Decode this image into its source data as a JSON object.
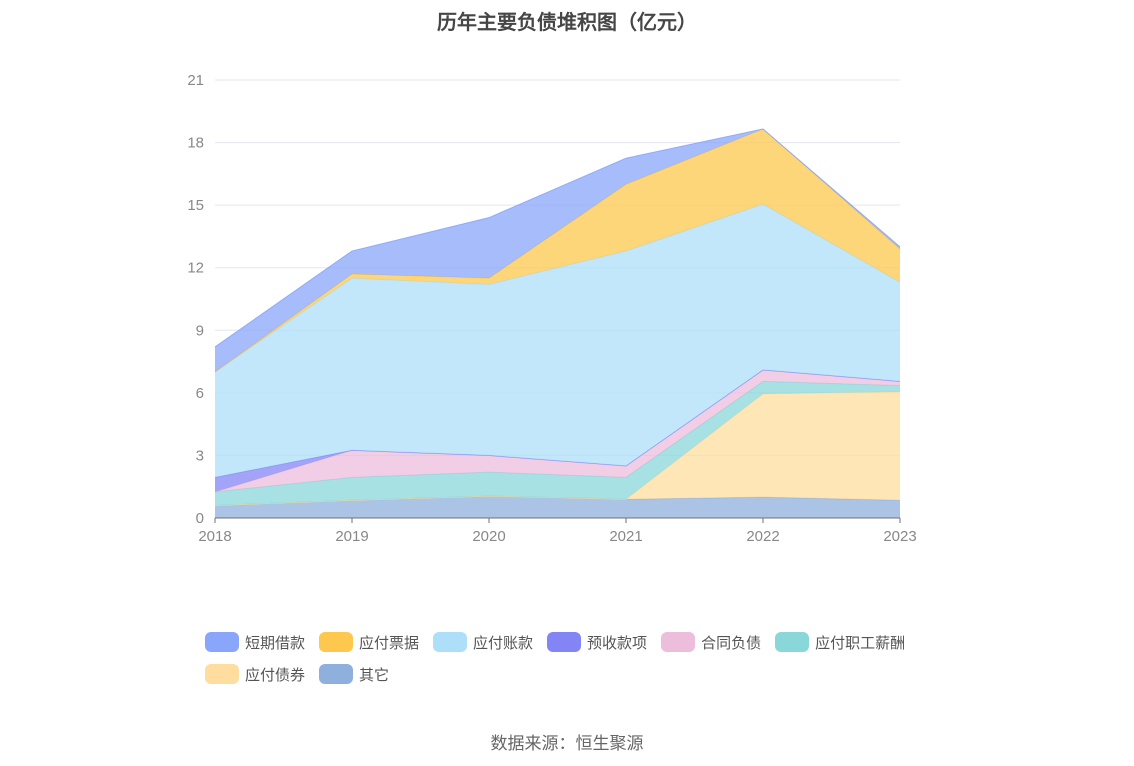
{
  "chart_data": {
    "type": "area",
    "stacked": true,
    "title": "历年主要负债堆积图（亿元）",
    "categories": [
      "2018",
      "2019",
      "2020",
      "2021",
      "2022",
      "2023"
    ],
    "ylim": [
      0,
      21
    ],
    "yticks": [
      0,
      3,
      6,
      9,
      12,
      15,
      18,
      21
    ],
    "grid": true,
    "legend_position": "bottom",
    "series": [
      {
        "name": "其它",
        "color": "#8fb0dc",
        "values": [
          0.6,
          0.85,
          1.05,
          0.9,
          1.0,
          0.85
        ]
      },
      {
        "name": "应付债券",
        "color": "#fedd9f",
        "values": [
          0.0,
          0.0,
          0.0,
          0.0,
          4.95,
          5.2
        ]
      },
      {
        "name": "应付职工薪酬",
        "color": "#8ad7d9",
        "values": [
          0.65,
          1.1,
          1.15,
          1.05,
          0.6,
          0.3
        ]
      },
      {
        "name": "合同负债",
        "color": "#ecbedc",
        "values": [
          0.0,
          1.3,
          0.8,
          0.55,
          0.55,
          0.2
        ]
      },
      {
        "name": "预收款项",
        "color": "#8485f5",
        "values": [
          0.7,
          0.0,
          0.0,
          0.0,
          0.0,
          0.0
        ]
      },
      {
        "name": "应付账款",
        "color": "#aedff8",
        "values": [
          5.05,
          8.25,
          8.2,
          10.3,
          7.95,
          4.75
        ]
      },
      {
        "name": "应付票据",
        "color": "#fdc84d",
        "values": [
          0.0,
          0.2,
          0.3,
          3.2,
          3.6,
          1.6
        ]
      },
      {
        "name": "短期借款",
        "color": "#89a6fa",
        "values": [
          1.2,
          1.1,
          2.9,
          1.25,
          0.0,
          0.1
        ]
      }
    ]
  },
  "legend": {
    "items": [
      {
        "label": "短期借款",
        "color": "#89a6fa"
      },
      {
        "label": "应付票据",
        "color": "#fdc84d"
      },
      {
        "label": "应付账款",
        "color": "#aedff8"
      },
      {
        "label": "预收款项",
        "color": "#8485f5"
      },
      {
        "label": "合同负债",
        "color": "#ecbedc"
      },
      {
        "label": "应付职工薪酬",
        "color": "#8ad7d9"
      },
      {
        "label": "应付债券",
        "color": "#fedd9f"
      },
      {
        "label": "其它",
        "color": "#8fb0dc"
      }
    ]
  },
  "source": "数据来源：恒生聚源"
}
